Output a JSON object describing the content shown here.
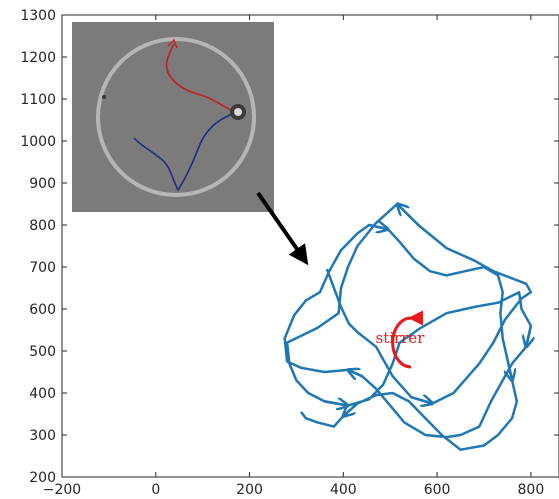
{
  "chart_data": {
    "type": "line",
    "title": "",
    "xlabel": "",
    "ylabel": "",
    "xlim": [
      -200,
      860
    ],
    "ylim": [
      200,
      1300
    ],
    "xticks": [
      -200,
      0,
      200,
      400,
      600,
      800
    ],
    "yticks": [
      200,
      300,
      400,
      500,
      600,
      700,
      800,
      900,
      1000,
      1100,
      1200,
      1300
    ],
    "grid": false,
    "series": [
      {
        "color": "#1f77b4",
        "points": [
          [
            365,
            695
          ],
          [
            395,
            605
          ],
          [
            412,
            565
          ],
          [
            430,
            545
          ],
          [
            470,
            510
          ],
          [
            505,
            440
          ],
          [
            545,
            390
          ],
          [
            590,
            375
          ],
          [
            635,
            400
          ],
          [
            690,
            470
          ],
          [
            720,
            520
          ],
          [
            745,
            575
          ],
          [
            780,
            625
          ],
          [
            800,
            640
          ],
          [
            790,
            660
          ],
          [
            720,
            690
          ],
          [
            680,
            715
          ],
          [
            620,
            745
          ],
          [
            560,
            800
          ],
          [
            515,
            850
          ],
          [
            470,
            805
          ],
          [
            430,
            750
          ],
          [
            410,
            700
          ],
          [
            395,
            650
          ],
          [
            390,
            590
          ],
          [
            345,
            555
          ],
          [
            280,
            520
          ],
          [
            285,
            470
          ],
          [
            300,
            430
          ],
          [
            325,
            400
          ],
          [
            360,
            380
          ],
          [
            410,
            370
          ],
          [
            455,
            385
          ],
          [
            485,
            420
          ],
          [
            505,
            470
          ],
          [
            520,
            520
          ],
          [
            565,
            555
          ],
          [
            620,
            590
          ],
          [
            680,
            605
          ],
          [
            730,
            615
          ],
          [
            775,
            640
          ],
          [
            780,
            600
          ],
          [
            800,
            560
          ],
          [
            790,
            510
          ],
          [
            760,
            470
          ],
          [
            740,
            430
          ],
          [
            715,
            380
          ],
          [
            690,
            320
          ],
          [
            650,
            300
          ],
          [
            620,
            295
          ],
          [
            575,
            300
          ],
          [
            530,
            330
          ],
          [
            500,
            370
          ],
          [
            470,
            410
          ],
          [
            440,
            440
          ],
          [
            410,
            455
          ],
          [
            360,
            450
          ],
          [
            310,
            460
          ],
          [
            280,
            475
          ],
          [
            275,
            530
          ],
          [
            295,
            585
          ],
          [
            320,
            620
          ],
          [
            350,
            640
          ],
          [
            370,
            690
          ],
          [
            395,
            740
          ],
          [
            430,
            780
          ],
          [
            455,
            800
          ],
          [
            495,
            790
          ],
          [
            520,
            760
          ],
          [
            550,
            720
          ],
          [
            585,
            690
          ],
          [
            620,
            680
          ],
          [
            660,
            690
          ],
          [
            700,
            700
          ],
          [
            730,
            680
          ],
          [
            740,
            640
          ],
          [
            735,
            590
          ],
          [
            740,
            530
          ],
          [
            750,
            480
          ],
          [
            760,
            430
          ],
          [
            770,
            380
          ],
          [
            760,
            340
          ],
          [
            730,
            300
          ],
          [
            700,
            275
          ],
          [
            650,
            265
          ],
          [
            610,
            300
          ],
          [
            575,
            340
          ],
          [
            540,
            380
          ],
          [
            505,
            400
          ],
          [
            470,
            395
          ],
          [
            430,
            375
          ],
          [
            400,
            345
          ],
          [
            380,
            320
          ],
          [
            345,
            330
          ],
          [
            320,
            340
          ],
          [
            310,
            355
          ]
        ]
      }
    ],
    "arrows_at_endpoints": true,
    "annotations": [
      {
        "text": "stirrer",
        "color": "#e8191a"
      }
    ],
    "inset": {
      "description_colors": {
        "ring": "#c8c8c8",
        "red_track": "#c0202a",
        "blue_track": "#1f2a8a",
        "background": "#808080"
      }
    }
  }
}
